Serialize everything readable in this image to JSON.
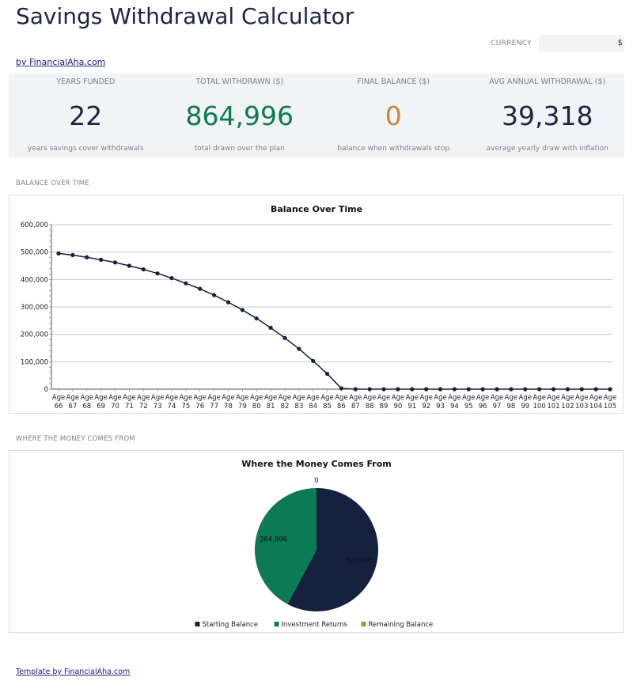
{
  "header": {
    "title": "Savings Withdrawal Calculator",
    "currency_label": "CURRENCY",
    "currency_value": "$",
    "byline": "by FinancialAha.com"
  },
  "kpis": [
    {
      "label": "YEARS FUNDED",
      "value": "22",
      "sub": "years savings cover withdrawals",
      "color": "#1b2545"
    },
    {
      "label": "TOTAL WITHDRAWN ($)",
      "value": "864,996",
      "sub": "total drawn over the plan",
      "color": "#0c7a55"
    },
    {
      "label": "FINAL BALANCE ($)",
      "value": "0",
      "sub": "balance when withdrawals stop",
      "color": "#c9853a"
    },
    {
      "label": "AVG ANNUAL WITHDRAWAL ($)",
      "value": "39,318",
      "sub": "average yearly draw with inflation",
      "color": "#1b2545"
    }
  ],
  "sections": {
    "balance": "BALANCE OVER TIME",
    "sources": "WHERE THE MONEY COMES FROM"
  },
  "footer": {
    "link": "Template by FinancialAha.com"
  },
  "colors": {
    "navy": "#16213d",
    "green": "#0c7a55",
    "orange": "#c9853a",
    "panel_bg": "#f1f3f5"
  },
  "chart_data": [
    {
      "type": "line",
      "title": "Balance Over Time",
      "xlabel": "",
      "ylabel": "",
      "ylim": [
        0,
        600000
      ],
      "yticks": [
        "0",
        "100,000",
        "200,000",
        "300,000",
        "400,000",
        "500,000",
        "600,000"
      ],
      "grid": true,
      "categories": [
        "Age 66",
        "Age 67",
        "Age 68",
        "Age 69",
        "Age 70",
        "Age 71",
        "Age 72",
        "Age 73",
        "Age 74",
        "Age 75",
        "Age 76",
        "Age 77",
        "Age 78",
        "Age 79",
        "Age 80",
        "Age 81",
        "Age 82",
        "Age 83",
        "Age 84",
        "Age 85",
        "Age 86",
        "Age 87",
        "Age 88",
        "Age 89",
        "Age 90",
        "Age 91",
        "Age 92",
        "Age 93",
        "Age 94",
        "Age 95",
        "Age 96",
        "Age 97",
        "Age 98",
        "Age 99",
        "Age 100",
        "Age 101",
        "Age 102",
        "Age 103",
        "Age 104",
        "Age 105"
      ],
      "series": [
        {
          "values": [
            495000,
            489000,
            481000,
            472000,
            462000,
            450000,
            437000,
            422000,
            405000,
            386000,
            366000,
            343000,
            317000,
            289000,
            258000,
            224000,
            187000,
            147000,
            103000,
            56000,
            3000,
            0,
            0,
            0,
            0,
            0,
            0,
            0,
            0,
            0,
            0,
            0,
            0,
            0,
            0,
            0,
            0,
            0,
            0,
            0
          ]
        }
      ]
    },
    {
      "type": "pie",
      "title": "Where the Money Comes From",
      "labels": [
        "Starting Balance",
        "Investment Returns",
        "Remaining Balance"
      ],
      "values": [
        500000,
        364996,
        0
      ],
      "value_labels": [
        "500,000",
        "364,996",
        "0"
      ],
      "colors": [
        "#16213d",
        "#0c7a55",
        "#c9853a"
      ],
      "legend": "bottom"
    }
  ]
}
